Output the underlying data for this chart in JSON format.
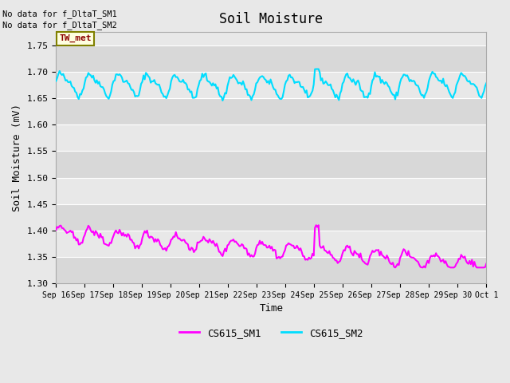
{
  "title": "Soil Moisture",
  "xlabel": "Time",
  "ylabel": "Soil Moisture (mV)",
  "ylim": [
    1.3,
    1.775
  ],
  "yticks": [
    1.3,
    1.35,
    1.4,
    1.45,
    1.5,
    1.55,
    1.6,
    1.65,
    1.7,
    1.75
  ],
  "fig_bg_color": "#e8e8e8",
  "plot_bg_color": "#e0e0e0",
  "band_color1": "#d8d8d8",
  "band_color2": "#e8e8e8",
  "text_no_data1": "No data for f_DltaT_SM1",
  "text_no_data2": "No data for f_DltaT_SM2",
  "tw_met_label": "TW_met",
  "line1_color": "#ff00ff",
  "line2_color": "#00ddff",
  "legend_label1": "CS615_SM1",
  "legend_label2": "CS615_SM2",
  "title_fontsize": 12,
  "axis_fontsize": 9,
  "tick_fontsize": 8,
  "xtick_labels": [
    "Sep 16",
    "Sep 17",
    "Sep 18",
    "Sep 19",
    "Sep 20",
    "Sep 21",
    "Sep 22",
    "Sep 23",
    "Sep 24",
    "Sep 25",
    "Sep 26",
    "Sep 27",
    "Sep 28",
    "Sep 29",
    "Sep 30",
    "Oct 1"
  ]
}
